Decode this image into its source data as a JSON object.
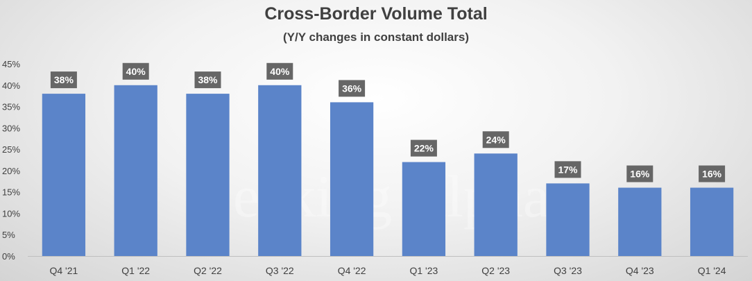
{
  "chart_data": {
    "type": "bar",
    "title": "Cross-Border Volume Total",
    "subtitle": "(Y/Y changes in constant dollars)",
    "categories": [
      "Q4 '21",
      "Q1 '22",
      "Q2 '22",
      "Q3 '22",
      "Q4 '22",
      "Q1 '23",
      "Q2 '23",
      "Q3 '23",
      "Q4 '23",
      "Q1 '24"
    ],
    "values": [
      38,
      40,
      38,
      40,
      36,
      22,
      24,
      17,
      16,
      16
    ],
    "data_labels": [
      "38%",
      "40%",
      "38%",
      "40%",
      "36%",
      "22%",
      "24%",
      "17%",
      "16%",
      "16%"
    ],
    "y_ticks": [
      0,
      5,
      10,
      15,
      20,
      25,
      30,
      35,
      40,
      45
    ],
    "y_tick_labels": [
      "0%",
      "5%",
      "10%",
      "15%",
      "20%",
      "25%",
      "30%",
      "35%",
      "40%",
      "45%"
    ],
    "ylim": [
      0,
      45
    ],
    "xlabel": "",
    "ylabel": "",
    "grid": false,
    "legend": "none",
    "colors": {
      "bar": "#5b84c9",
      "label_bg": "#666666",
      "label_text": "#ffffff",
      "text": "#404040",
      "axis": "#bfbfbf"
    }
  },
  "watermark": "Seeking Alpha"
}
